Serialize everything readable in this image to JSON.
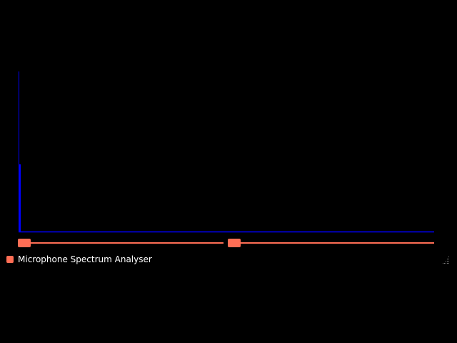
{
  "window": {
    "title": "Microphone Spectrum Analyser"
  },
  "colors": {
    "background": "#000000",
    "spectrum_line": "#0000ff",
    "accent": "#ff6e55",
    "text": "#ffffff"
  },
  "icons": {
    "app": "app-icon",
    "resize": "resize-grip-icon"
  },
  "sliders": {
    "left": {
      "value": 0.03
    },
    "right": {
      "value": 0.03
    }
  }
}
